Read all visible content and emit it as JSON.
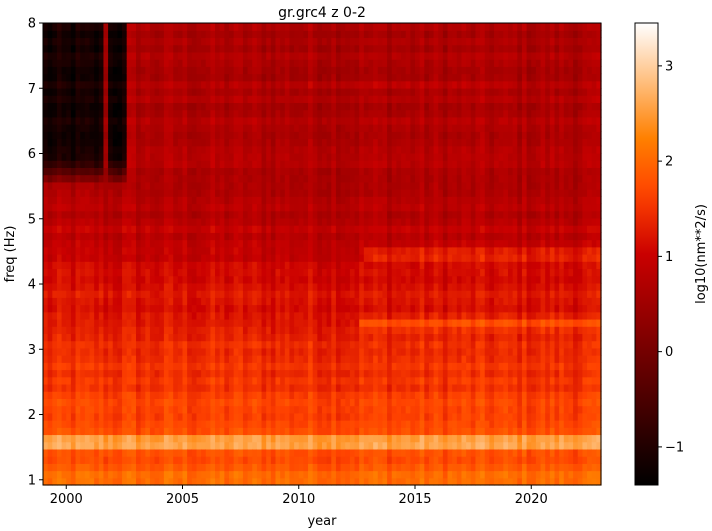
{
  "chart_data": {
    "type": "heatmap",
    "title": "gr.grc4 z 0-2",
    "xlabel": "year",
    "ylabel": "freq (Hz)",
    "xlim": [
      1999.0,
      2023.0
    ],
    "ylim": [
      0.92,
      8.0
    ],
    "x_ticks": [
      2000,
      2005,
      2010,
      2015,
      2020
    ],
    "y_ticks": [
      1,
      2,
      3,
      4,
      5,
      6,
      7,
      8
    ],
    "colorbar": {
      "label": "log10(nm**2/s)",
      "range": [
        -1.4,
        3.45
      ],
      "ticks": [
        -1,
        0,
        1,
        2,
        3
      ],
      "colormap": "gist_heat"
    },
    "features": [
      {
        "kind": "quiet-gap",
        "x_range": [
          1999.0,
          2002.6
        ],
        "y_range": [
          5.5,
          8.0
        ],
        "value": -1.2
      },
      {
        "kind": "vertical-spike",
        "x": 2001.7,
        "value": 0.6
      },
      {
        "kind": "band",
        "y": 4.45,
        "x_range": [
          2012.8,
          2023.0
        ],
        "value": 1.5
      },
      {
        "kind": "band",
        "y": 3.4,
        "x_range": [
          2012.6,
          2023.0
        ],
        "value": 1.8
      },
      {
        "kind": "band",
        "y": 7.05,
        "x_range": [
          2010.5,
          2019.2
        ],
        "value": 0.75
      },
      {
        "kind": "band",
        "y": 1.58,
        "x_range": [
          1999.0,
          2023.0
        ],
        "value": 2.9
      }
    ]
  }
}
